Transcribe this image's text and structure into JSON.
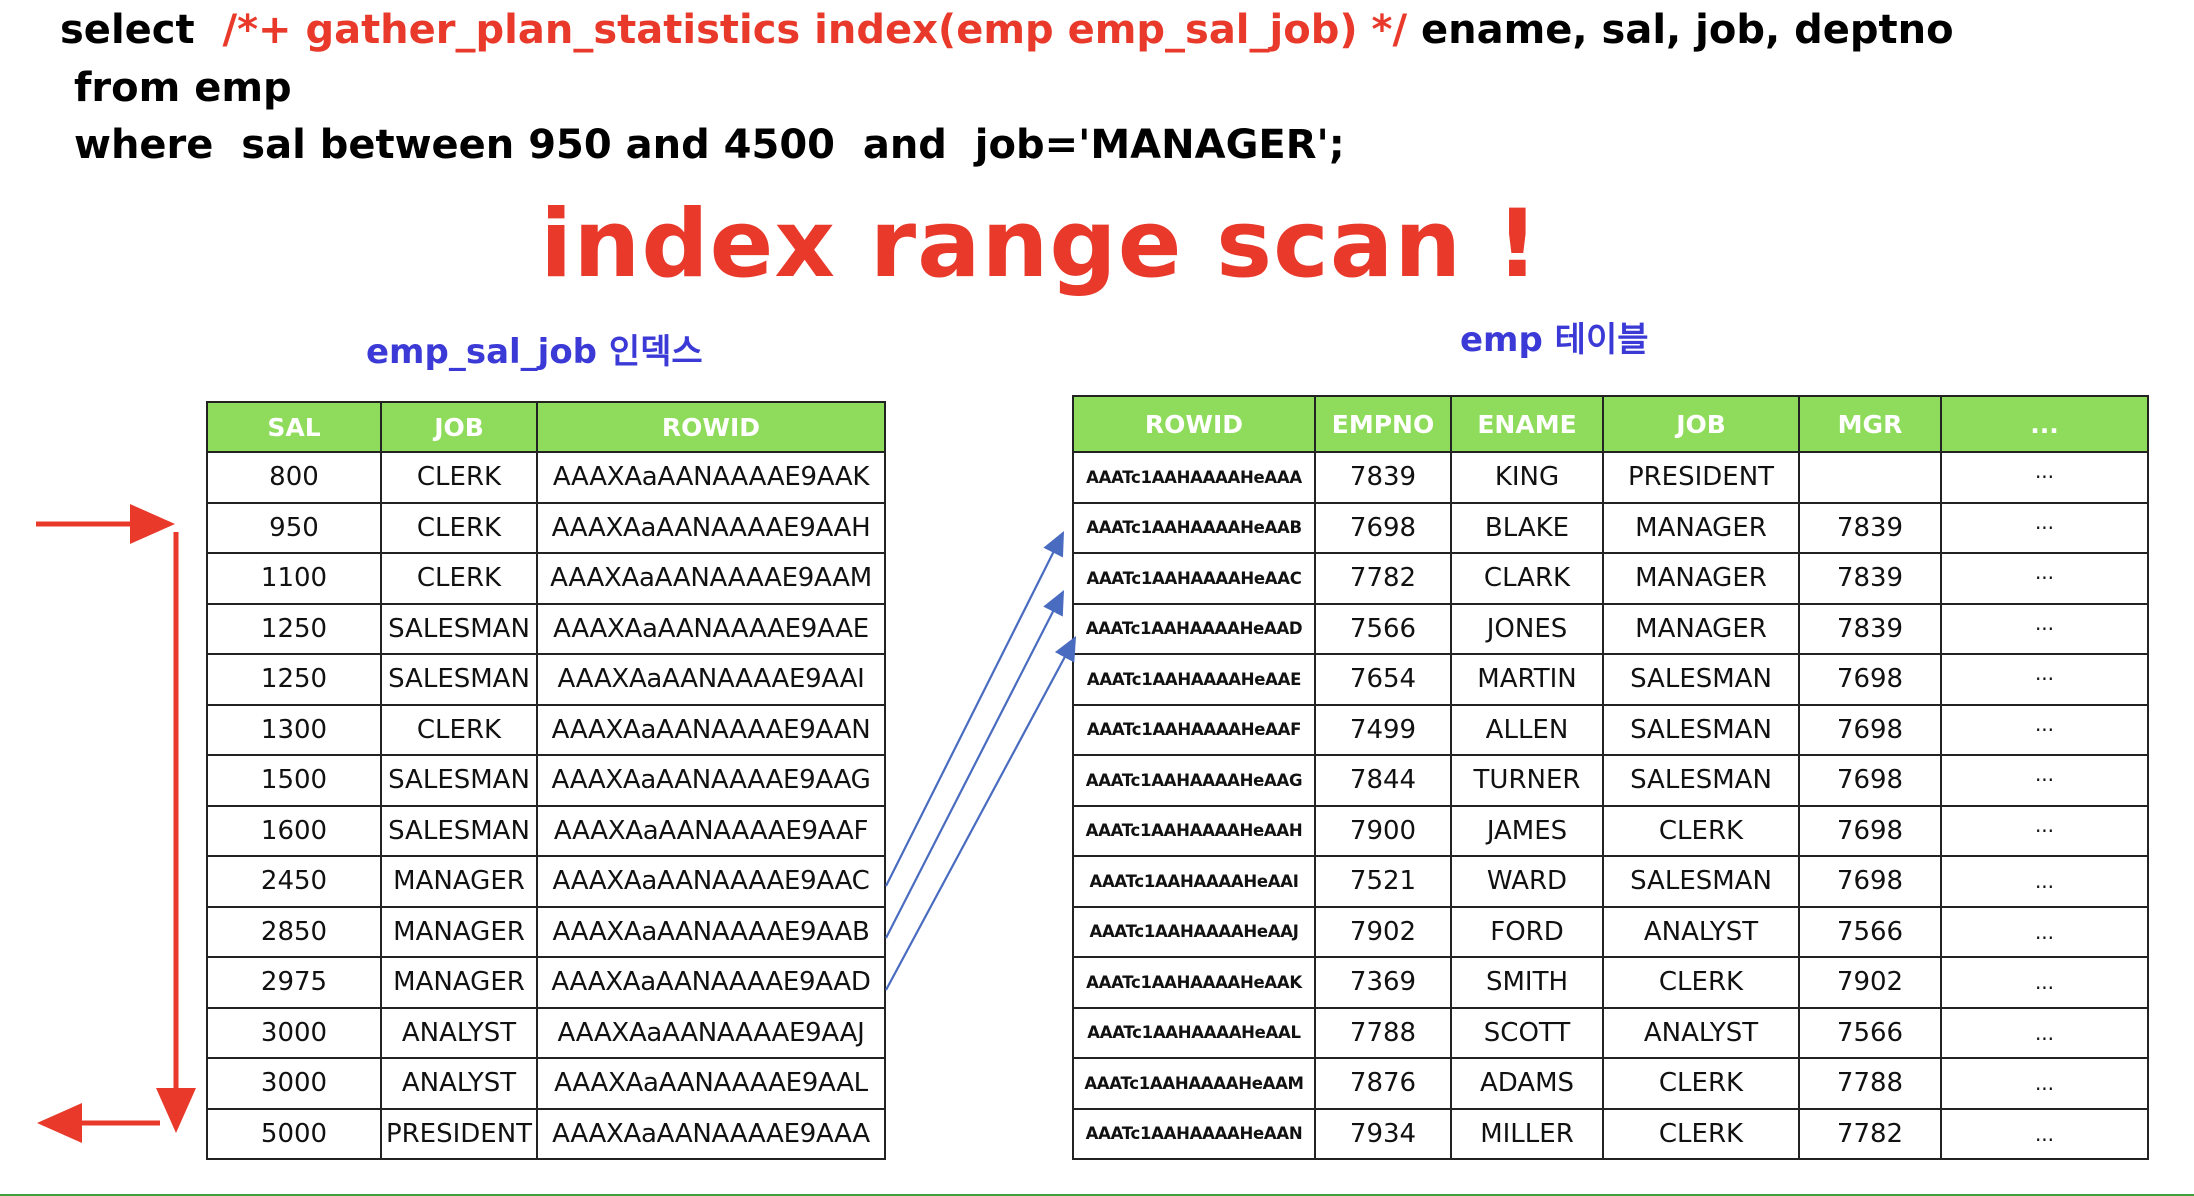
{
  "sql": {
    "line1_prefix": "select  ",
    "line1_hint": "/*+ gather_plan_statistics index(emp emp_sal_job) */",
    "line1_suffix": " ename, sal, job, deptno",
    "line2": "from emp",
    "line3": "where  sal between 950 and 4500  and  job='MANAGER';"
  },
  "title": "index range scan !",
  "index_table": {
    "caption": "emp_sal_job 인덱스",
    "headers": [
      "SAL",
      "JOB",
      "ROWID"
    ],
    "rows": [
      [
        "800",
        "CLERK",
        "AAAXAaAANAAAAE9AAK"
      ],
      [
        "950",
        "CLERK",
        "AAAXAaAANAAAAE9AAH"
      ],
      [
        "1100",
        "CLERK",
        "AAAXAaAANAAAAE9AAM"
      ],
      [
        "1250",
        "SALESMAN",
        "AAAXAaAANAAAAE9AAE"
      ],
      [
        "1250",
        "SALESMAN",
        "AAAXAaAANAAAAE9AAI"
      ],
      [
        "1300",
        "CLERK",
        "AAAXAaAANAAAAE9AAN"
      ],
      [
        "1500",
        "SALESMAN",
        "AAAXAaAANAAAAE9AAG"
      ],
      [
        "1600",
        "SALESMAN",
        "AAAXAaAANAAAAE9AAF"
      ],
      [
        "2450",
        "MANAGER",
        "AAAXAaAANAAAAE9AAC"
      ],
      [
        "2850",
        "MANAGER",
        "AAAXAaAANAAAAE9AAB"
      ],
      [
        "2975",
        "MANAGER",
        "AAAXAaAANAAAAE9AAD"
      ],
      [
        "3000",
        "ANALYST",
        "AAAXAaAANAAAAE9AAJ"
      ],
      [
        "3000",
        "ANALYST",
        "AAAXAaAANAAAAE9AAL"
      ],
      [
        "5000",
        "PRESIDENT",
        "AAAXAaAANAAAAE9AAA"
      ]
    ]
  },
  "emp_table": {
    "caption": "emp 테이블",
    "headers": [
      "ROWID",
      "EMPNO",
      "ENAME",
      "JOB",
      "MGR",
      "..."
    ],
    "rows": [
      [
        "AAATc1AAHAAAAHeAAA",
        "7839",
        "KING",
        "PRESIDENT",
        "",
        "···"
      ],
      [
        "AAATc1AAHAAAAHeAAB",
        "7698",
        "BLAKE",
        "MANAGER",
        "7839",
        "···"
      ],
      [
        "AAATc1AAHAAAAHeAAC",
        "7782",
        "CLARK",
        "MANAGER",
        "7839",
        "···"
      ],
      [
        "AAATc1AAHAAAAHeAAD",
        "7566",
        "JONES",
        "MANAGER",
        "7839",
        "···"
      ],
      [
        "AAATc1AAHAAAAHeAAE",
        "7654",
        "MARTIN",
        "SALESMAN",
        "7698",
        "···"
      ],
      [
        "AAATc1AAHAAAAHeAAF",
        "7499",
        "ALLEN",
        "SALESMAN",
        "7698",
        "···"
      ],
      [
        "AAATc1AAHAAAAHeAAG",
        "7844",
        "TURNER",
        "SALESMAN",
        "7698",
        "···"
      ],
      [
        "AAATc1AAHAAAAHeAAH",
        "7900",
        "JAMES",
        "CLERK",
        "7698",
        "···"
      ],
      [
        "AAATc1AAHAAAAHeAAI",
        "7521",
        "WARD",
        "SALESMAN",
        "7698",
        "..."
      ],
      [
        "AAATc1AAHAAAAHeAAJ",
        "7902",
        "FORD",
        "ANALYST",
        "7566",
        "..."
      ],
      [
        "AAATc1AAHAAAAHeAAK",
        "7369",
        "SMITH",
        "CLERK",
        "7902",
        "..."
      ],
      [
        "AAATc1AAHAAAAHeAAL",
        "7788",
        "SCOTT",
        "ANALYST",
        "7566",
        "..."
      ],
      [
        "AAATc1AAHAAAAHeAAM",
        "7876",
        "ADAMS",
        "CLERK",
        "7788",
        "..."
      ],
      [
        "AAATc1AAHAAAAHeAAN",
        "7934",
        "MILLER",
        "CLERK",
        "7782",
        "..."
      ]
    ]
  },
  "colors": {
    "hint_red": "#e8392b",
    "caption_blue": "#3b3ad6",
    "header_green": "#8fdc5c",
    "link_arrow_blue": "#4a6cc0",
    "scan_arrow_red": "#e8392b"
  }
}
